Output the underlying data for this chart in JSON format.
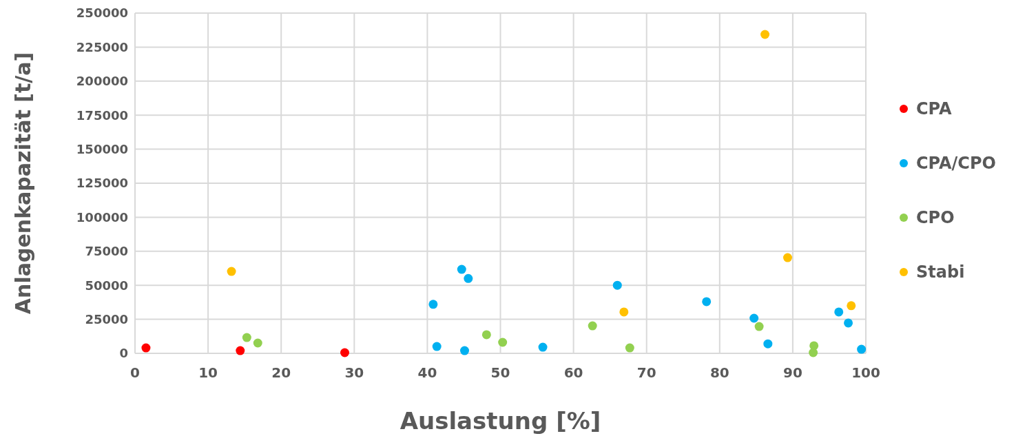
{
  "chart_data": {
    "type": "scatter",
    "xlabel": "Auslastung [%]",
    "ylabel": "Anlagenkapazität [t/a]",
    "xlim": [
      0,
      100
    ],
    "xticks": [
      0,
      10,
      20,
      30,
      40,
      50,
      60,
      70,
      80,
      90,
      100
    ],
    "ylim": [
      0,
      250000
    ],
    "yticks": [
      0,
      25000,
      50000,
      75000,
      100000,
      125000,
      150000,
      175000,
      200000,
      225000,
      250000
    ],
    "grid": true,
    "legend": "right",
    "marker": "circle",
    "series": [
      {
        "name": "CPA",
        "color": "#ff0000",
        "x": [
          1.5,
          14.4,
          28.7
        ],
        "values": [
          4000,
          2000,
          500
        ]
      },
      {
        "name": "CPA/CPO",
        "color": "#00b0f0",
        "x": [
          40.8,
          41.3,
          44.7,
          45.6,
          45.1,
          55.8,
          66.0,
          78.2,
          84.7,
          86.6,
          96.3,
          97.6,
          99.4
        ],
        "values": [
          36000,
          5000,
          61700,
          55000,
          2000,
          4500,
          50000,
          38000,
          25800,
          7000,
          30400,
          22300,
          3000
        ]
      },
      {
        "name": "CPO",
        "color": "#92d050",
        "x": [
          15.3,
          16.8,
          48.1,
          50.3,
          62.6,
          67.7,
          85.4,
          92.9,
          92.8
        ],
        "values": [
          11600,
          7600,
          13700,
          8100,
          20200,
          4000,
          19700,
          5600,
          500
        ]
      },
      {
        "name": "Stabi",
        "color": "#ffc000",
        "x": [
          13.2,
          86.2,
          89.3,
          66.9,
          98.0
        ],
        "values": [
          60200,
          234300,
          70300,
          30400,
          35000
        ]
      }
    ]
  }
}
